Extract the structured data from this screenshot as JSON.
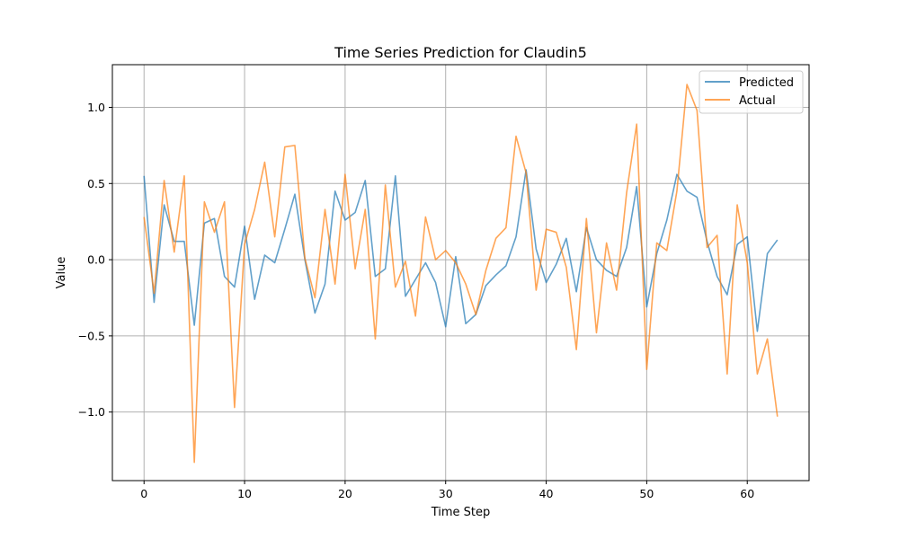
{
  "chart_data": {
    "type": "line",
    "title": "Time Series Prediction for Claudin5",
    "xlabel": "Time Step",
    "ylabel": "Value",
    "xlim": [
      -3.15,
      66.15
    ],
    "ylim": [
      -1.45,
      1.28
    ],
    "xticks": [
      0,
      10,
      20,
      30,
      40,
      50,
      60
    ],
    "yticks": [
      -1.0,
      -0.5,
      0.0,
      0.5,
      1.0
    ],
    "ytick_labels": [
      "−1.0",
      "−0.5",
      "0.0",
      "0.5",
      "1.0"
    ],
    "grid": true,
    "legend_position": "top-right",
    "series": [
      {
        "name": "Predicted",
        "color": "#1f77b4",
        "values": [
          0.55,
          -0.28,
          0.36,
          0.12,
          0.12,
          -0.43,
          0.24,
          0.27,
          -0.11,
          -0.18,
          0.22,
          -0.26,
          0.03,
          -0.02,
          0.2,
          0.43,
          0.0,
          -0.35,
          -0.16,
          0.45,
          0.26,
          0.31,
          0.52,
          -0.11,
          -0.06,
          0.55,
          -0.24,
          -0.13,
          -0.02,
          -0.15,
          -0.44,
          0.02,
          -0.42,
          -0.36,
          -0.17,
          -0.1,
          -0.04,
          0.15,
          0.59,
          0.07,
          -0.15,
          -0.03,
          0.14,
          -0.21,
          0.21,
          0.0,
          -0.07,
          -0.11,
          0.08,
          0.48,
          -0.31,
          0.04,
          0.26,
          0.56,
          0.45,
          0.41,
          0.12,
          -0.11,
          -0.23,
          0.1,
          0.15,
          -0.47,
          0.04,
          0.13
        ]
      },
      {
        "name": "Actual",
        "color": "#ff7f0e",
        "values": [
          0.28,
          -0.22,
          0.52,
          0.05,
          0.55,
          -1.33,
          0.38,
          0.18,
          0.38,
          -0.97,
          0.1,
          0.33,
          0.64,
          0.15,
          0.74,
          0.75,
          0.01,
          -0.25,
          0.33,
          -0.16,
          0.56,
          -0.06,
          0.33,
          -0.52,
          0.49,
          -0.18,
          -0.01,
          -0.37,
          0.28,
          0.0,
          0.06,
          -0.02,
          -0.16,
          -0.36,
          -0.07,
          0.14,
          0.21,
          0.81,
          0.57,
          -0.2,
          0.2,
          0.18,
          -0.05,
          -0.59,
          0.27,
          -0.48,
          0.11,
          -0.2,
          0.44,
          0.89,
          -0.72,
          0.11,
          0.06,
          0.45,
          1.15,
          0.98,
          0.08,
          0.16,
          -0.75,
          0.36,
          -0.02,
          -0.75,
          -0.52,
          -1.03
        ]
      }
    ]
  }
}
